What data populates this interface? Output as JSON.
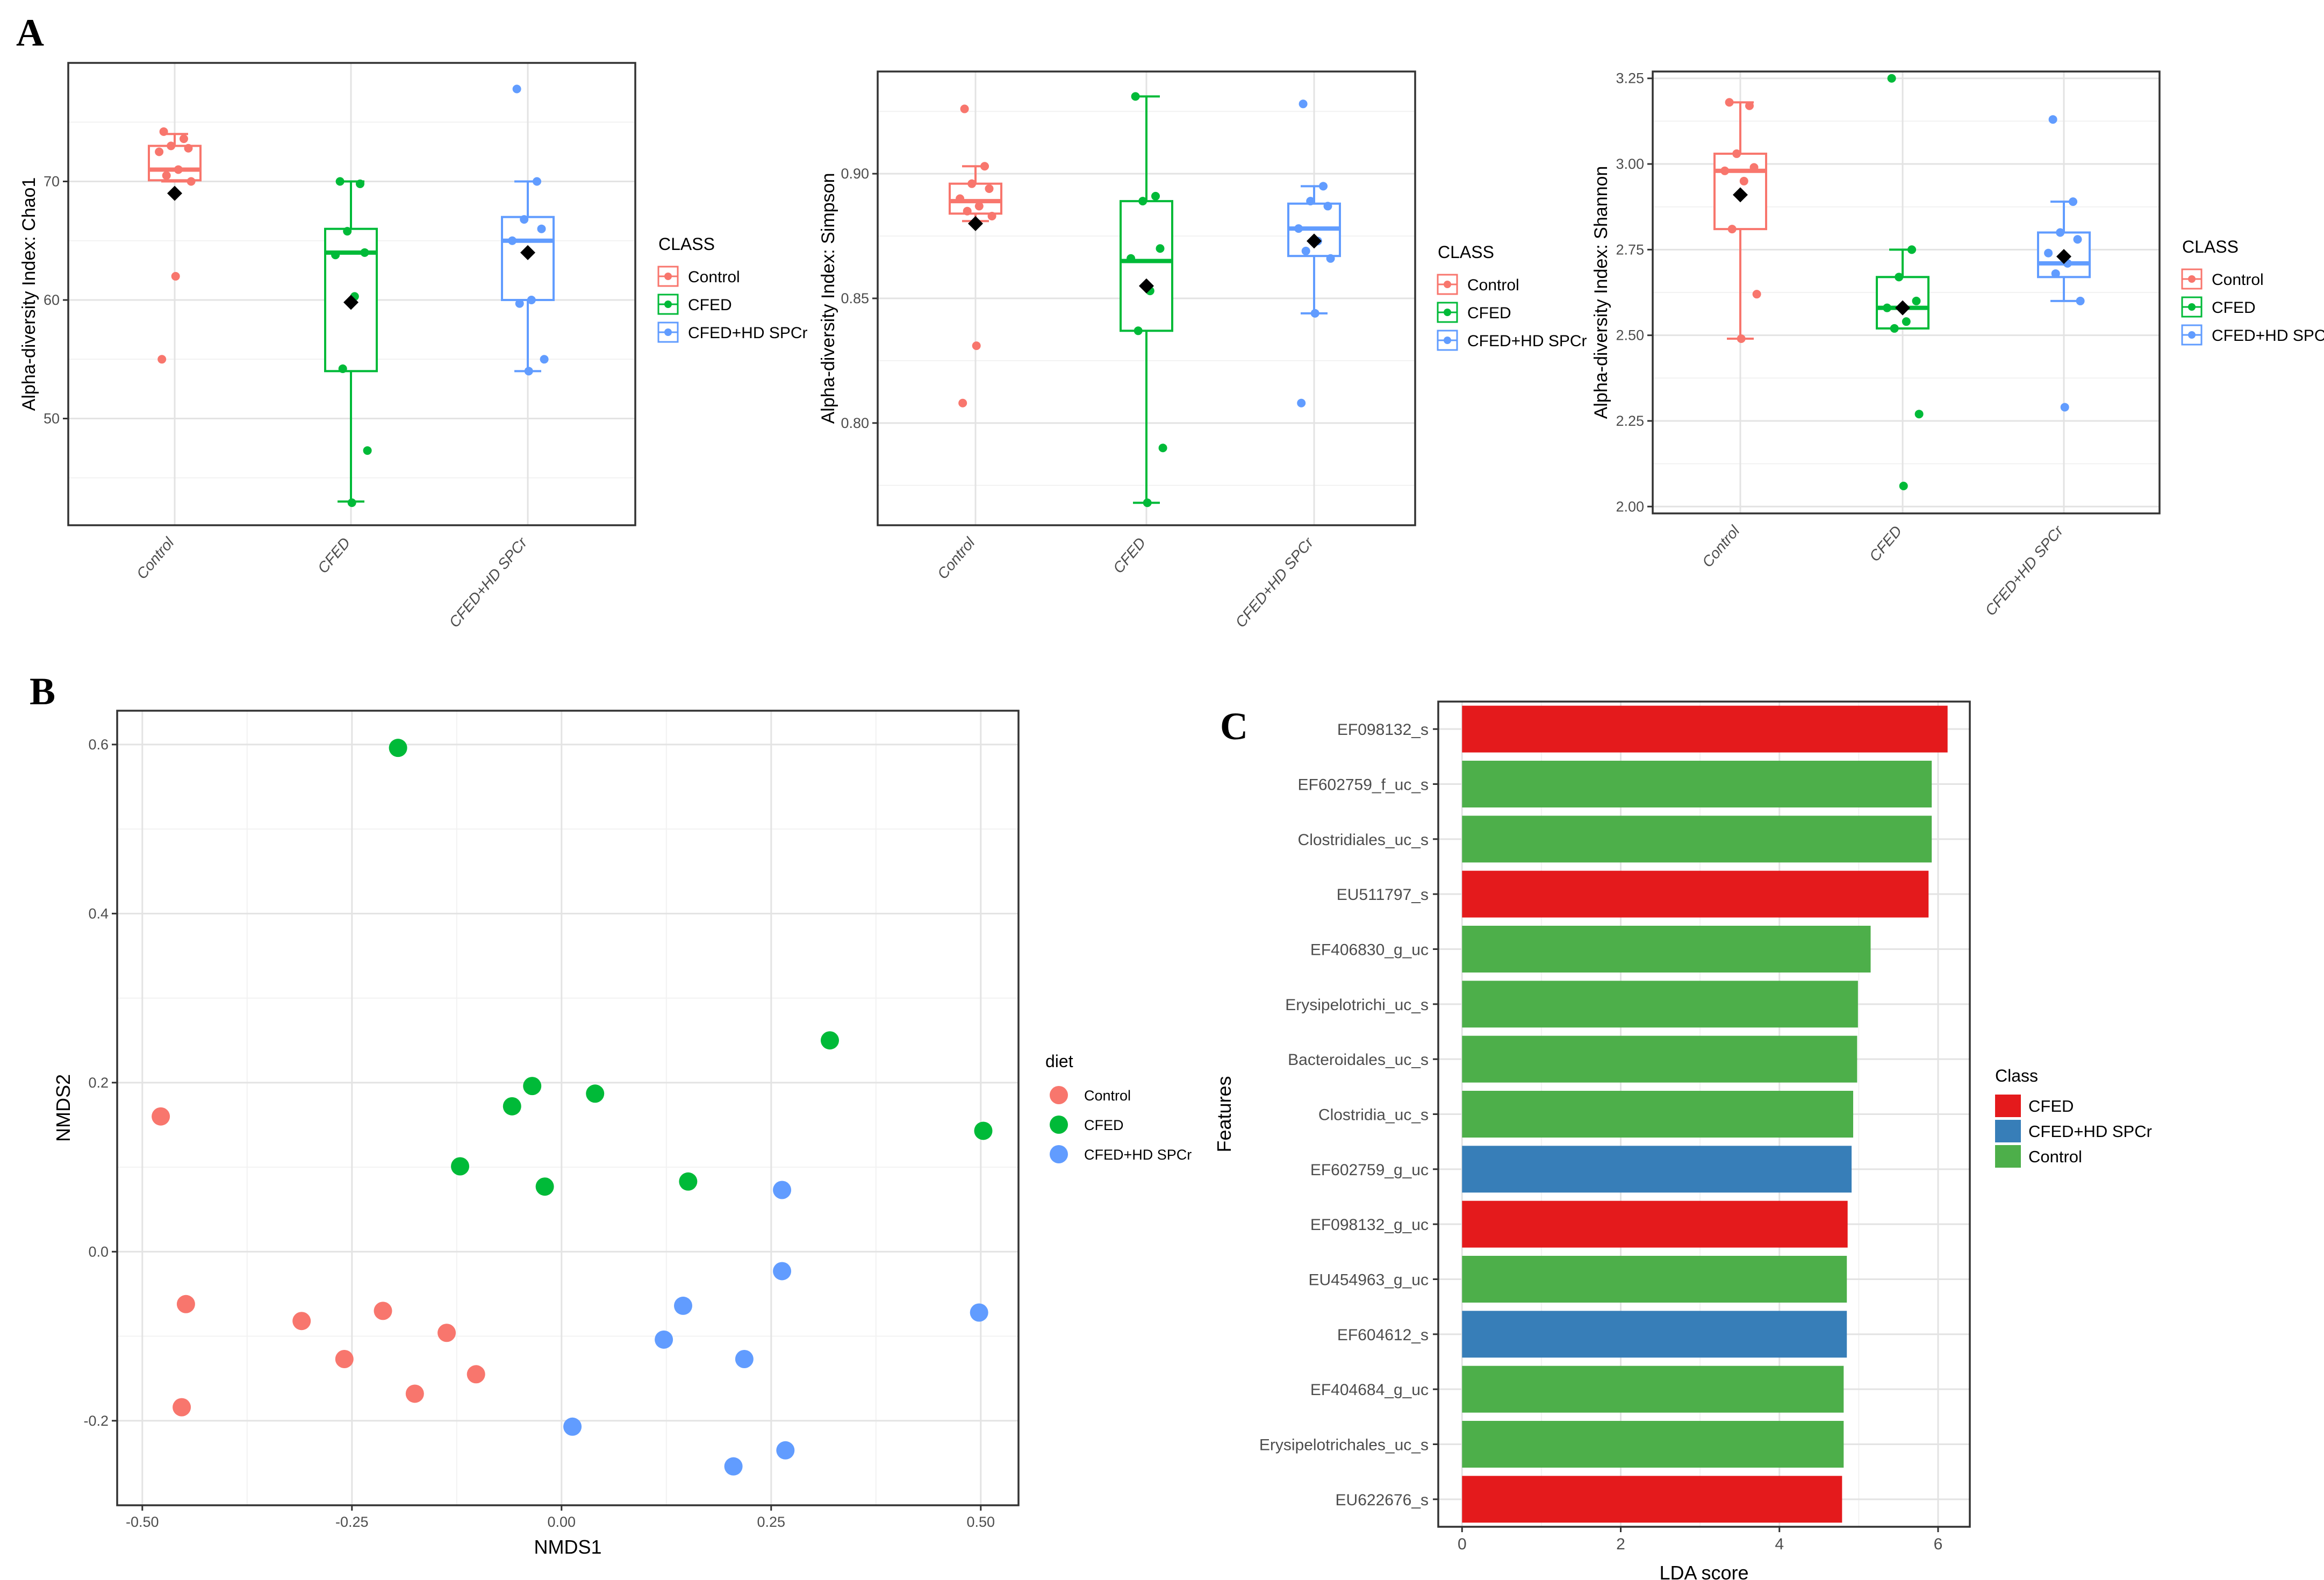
{
  "panels": {
    "A": "A",
    "B": "B",
    "C": "C"
  },
  "colors": {
    "Control": "#f8766d",
    "CFED": "#00ba38",
    "CFED+HD SPCr": "#619cff",
    "lefse_CFED": "#e41a1c",
    "lefse_HD": "#377eb8",
    "lefse_Control": "#4daf4a"
  },
  "chart_data": [
    {
      "id": "chao1",
      "type": "box",
      "ylabel": "Alpha-diversity Index: Chao1",
      "categories": [
        "Control",
        "CFED",
        "CFED+HD SPCr"
      ],
      "ylim": [
        41,
        80
      ],
      "yticks": [
        50,
        60,
        70
      ],
      "ytick_labels": [
        "50",
        "60",
        "70"
      ],
      "legend_title": "CLASS",
      "legend_labels": [
        "Control",
        "CFED",
        "CFED+HD SPCr"
      ],
      "boxes": [
        {
          "q1": 70.1,
          "median": 71.0,
          "q3": 73.0,
          "whisker_low": 70.0,
          "whisker_high": 74.0,
          "mean": 69.0,
          "points": [
            74.2,
            73.6,
            73.0,
            72.8,
            72.5,
            71.0,
            70.5,
            70.0,
            62.0,
            55.0
          ]
        },
        {
          "q1": 54.0,
          "median": 64.0,
          "q3": 66.0,
          "whisker_low": 43.0,
          "whisker_high": 70.0,
          "mean": 59.8,
          "points": [
            70.0,
            69.8,
            65.8,
            64.0,
            63.8,
            60.3,
            54.2,
            47.3,
            42.9
          ]
        },
        {
          "q1": 60.0,
          "median": 65.0,
          "q3": 67.0,
          "whisker_low": 54.0,
          "whisker_high": 70.0,
          "mean": 64.0,
          "points": [
            77.8,
            70.0,
            66.8,
            66.0,
            65.0,
            60.0,
            59.7,
            55.0,
            54.0
          ]
        }
      ]
    },
    {
      "id": "simpson",
      "type": "box",
      "ylabel": "Alpha-diversity Index: Simpson",
      "categories": [
        "Control",
        "CFED",
        "CFED+HD SPCr"
      ],
      "ylim": [
        0.759,
        0.941
      ],
      "yticks": [
        0.8,
        0.85,
        0.9
      ],
      "ytick_labels": [
        "0.80",
        "0.85",
        "0.90"
      ],
      "legend_title": "CLASS",
      "legend_labels": [
        "Control",
        "CFED",
        "CFED+HD SPCr"
      ],
      "boxes": [
        {
          "q1": 0.884,
          "median": 0.889,
          "q3": 0.896,
          "whisker_low": 0.881,
          "whisker_high": 0.903,
          "mean": 0.88,
          "points": [
            0.926,
            0.903,
            0.896,
            0.894,
            0.89,
            0.887,
            0.885,
            0.883,
            0.831,
            0.808
          ]
        },
        {
          "q1": 0.837,
          "median": 0.865,
          "q3": 0.889,
          "whisker_low": 0.768,
          "whisker_high": 0.931,
          "mean": 0.855,
          "points": [
            0.931,
            0.891,
            0.889,
            0.87,
            0.866,
            0.853,
            0.837,
            0.79,
            0.768
          ]
        },
        {
          "q1": 0.867,
          "median": 0.878,
          "q3": 0.888,
          "whisker_low": 0.844,
          "whisker_high": 0.895,
          "mean": 0.873,
          "points": [
            0.928,
            0.895,
            0.889,
            0.887,
            0.878,
            0.873,
            0.869,
            0.866,
            0.844,
            0.808
          ]
        }
      ]
    },
    {
      "id": "shannon",
      "type": "box",
      "ylabel": "Alpha-diversity Index: Shannon",
      "categories": [
        "Control",
        "CFED",
        "CFED+HD SPCr"
      ],
      "ylim": [
        1.98,
        3.27
      ],
      "yticks": [
        2.0,
        2.25,
        2.5,
        2.75,
        3.0,
        3.25
      ],
      "ytick_labels": [
        "2.00",
        "2.25",
        "2.50",
        "2.75",
        "3.00",
        "3.25"
      ],
      "legend_title": "CLASS",
      "legend_labels": [
        "Control",
        "CFED",
        "CFED+HD SPCr"
      ],
      "boxes": [
        {
          "q1": 2.81,
          "median": 2.98,
          "q3": 3.03,
          "whisker_low": 2.49,
          "whisker_high": 3.18,
          "mean": 2.91,
          "points": [
            3.18,
            3.17,
            3.03,
            2.99,
            2.98,
            2.95,
            2.81,
            2.62,
            2.49
          ]
        },
        {
          "q1": 2.52,
          "median": 2.58,
          "q3": 2.67,
          "whisker_low": 2.52,
          "whisker_high": 2.75,
          "mean": 2.58,
          "points": [
            3.25,
            2.75,
            2.67,
            2.6,
            2.58,
            2.54,
            2.52,
            2.27,
            2.06
          ]
        },
        {
          "q1": 2.67,
          "median": 2.71,
          "q3": 2.8,
          "whisker_low": 2.6,
          "whisker_high": 2.89,
          "mean": 2.73,
          "points": [
            3.13,
            2.89,
            2.8,
            2.78,
            2.74,
            2.71,
            2.68,
            2.6,
            2.29
          ]
        }
      ]
    },
    {
      "id": "nmds",
      "type": "scatter",
      "xlabel": "NMDS1",
      "ylabel": "NMDS2",
      "xlim": [
        -0.53,
        0.545
      ],
      "ylim": [
        -0.3,
        0.64
      ],
      "xticks": [
        -0.5,
        -0.25,
        0.0,
        0.25,
        0.5
      ],
      "xtick_labels": [
        "-0.50",
        "-0.25",
        "0.00",
        "0.25",
        "0.50"
      ],
      "yticks": [
        -0.2,
        0.0,
        0.2,
        0.4,
        0.6
      ],
      "ytick_labels": [
        "-0.2",
        "0.0",
        "0.2",
        "0.4",
        "0.6"
      ],
      "legend_title": "diet",
      "legend_labels": [
        "Control",
        "CFED",
        "CFED+HD SPCr"
      ],
      "series": [
        {
          "name": "Control",
          "points": [
            [
              -0.478,
              0.16
            ],
            [
              -0.448,
              -0.062
            ],
            [
              -0.453,
              -0.184
            ],
            [
              -0.31,
              -0.082
            ],
            [
              -0.259,
              -0.127
            ],
            [
              -0.213,
              -0.07
            ],
            [
              -0.175,
              -0.168
            ],
            [
              -0.137,
              -0.096
            ],
            [
              -0.102,
              -0.145
            ]
          ]
        },
        {
          "name": "CFED",
          "points": [
            [
              -0.195,
              0.596
            ],
            [
              -0.121,
              0.101
            ],
            [
              -0.059,
              0.172
            ],
            [
              -0.035,
              0.196
            ],
            [
              -0.02,
              0.077
            ],
            [
              0.04,
              0.187
            ],
            [
              0.151,
              0.083
            ],
            [
              0.32,
              0.25
            ],
            [
              0.503,
              0.143
            ]
          ]
        },
        {
          "name": "CFED+HD SPCr",
          "points": [
            [
              0.013,
              -0.207
            ],
            [
              0.122,
              -0.104
            ],
            [
              0.145,
              -0.064
            ],
            [
              0.205,
              -0.254
            ],
            [
              0.218,
              -0.127
            ],
            [
              0.263,
              0.073
            ],
            [
              0.263,
              -0.023
            ],
            [
              0.267,
              -0.235
            ],
            [
              0.498,
              -0.072
            ]
          ]
        }
      ]
    },
    {
      "id": "lefse",
      "type": "bar",
      "orientation": "horizontal",
      "xlabel": "LDA score",
      "ylabel": "Features",
      "xlim": [
        -0.3,
        6.4
      ],
      "xticks": [
        0,
        2,
        4,
        6
      ],
      "xtick_labels": [
        "0",
        "2",
        "4",
        "6"
      ],
      "legend_title": "Class",
      "legend_labels": [
        "CFED",
        "CFED+HD SPCr",
        "Control"
      ],
      "categories": [
        "EF098132_s",
        "EF602759_f_uc_s",
        "Clostridiales_uc_s",
        "EU511797_s",
        "EF406830_g_uc",
        "Erysipelotrichi_uc_s",
        "Bacteroidales_uc_s",
        "Clostridia_uc_s",
        "EF602759_g_uc",
        "EF098132_g_uc",
        "EU454963_g_uc",
        "EF604612_s",
        "EF404684_g_uc",
        "Erysipelotrichales_uc_s",
        "EU622676_s"
      ],
      "values": [
        6.12,
        5.92,
        5.92,
        5.88,
        5.15,
        4.99,
        4.98,
        4.93,
        4.91,
        4.86,
        4.85,
        4.85,
        4.81,
        4.81,
        4.79
      ],
      "classes": [
        "CFED",
        "Control",
        "Control",
        "CFED",
        "Control",
        "Control",
        "Control",
        "Control",
        "CFED+HD SPCr",
        "CFED",
        "Control",
        "CFED+HD SPCr",
        "Control",
        "Control",
        "CFED"
      ]
    }
  ]
}
